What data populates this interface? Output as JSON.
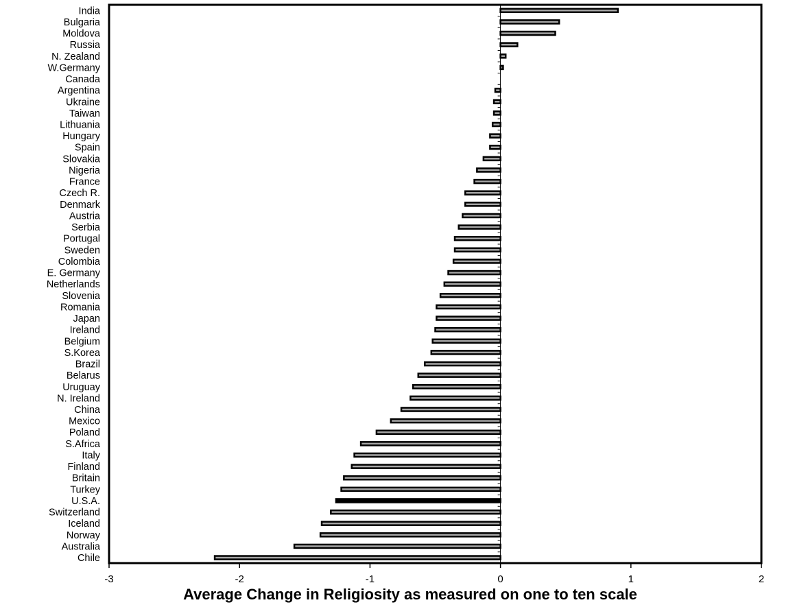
{
  "chart_data": {
    "type": "bar",
    "orientation": "horizontal",
    "xlabel": "Average Change in Religiosity as measured on  one to  ten scale",
    "xlim": [
      -3,
      2
    ],
    "xticks": [
      -3,
      -2,
      -1,
      0,
      1,
      2
    ],
    "grid": false,
    "categories": [
      "India",
      "Bulgaria",
      "Moldova",
      "Russia",
      "N. Zealand",
      "W.Germany",
      "Canada",
      "Argentina",
      "Ukraine",
      "Taiwan",
      "Lithuania",
      "Hungary",
      "Spain",
      "Slovakia",
      "Nigeria",
      "France",
      "Czech R.",
      "Denmark",
      "Austria",
      "Serbia",
      "Portugal",
      "Sweden",
      "Colombia",
      "E. Germany",
      "Netherlands",
      "Slovenia",
      "Romania",
      "Japan",
      "Ireland",
      "Belgium",
      "S.Korea",
      "Brazil",
      "Belarus",
      "Uruguay",
      "N. Ireland",
      "China",
      "Mexico",
      "Poland",
      "S.Africa",
      "Italy",
      "Finland",
      "Britain",
      "Turkey",
      "U.S.A.",
      "Switzerland",
      "Iceland",
      "Norway",
      "Australia",
      "Chile"
    ],
    "values": [
      0.9,
      0.45,
      0.42,
      0.13,
      0.04,
      0.02,
      0.0,
      -0.04,
      -0.05,
      -0.05,
      -0.06,
      -0.08,
      -0.08,
      -0.13,
      -0.18,
      -0.2,
      -0.27,
      -0.27,
      -0.29,
      -0.32,
      -0.35,
      -0.35,
      -0.36,
      -0.4,
      -0.43,
      -0.46,
      -0.49,
      -0.49,
      -0.5,
      -0.52,
      -0.53,
      -0.58,
      -0.63,
      -0.67,
      -0.69,
      -0.76,
      -0.84,
      -0.95,
      -1.07,
      -1.12,
      -1.14,
      -1.2,
      -1.22,
      -1.26,
      -1.3,
      -1.37,
      -1.38,
      -1.58,
      -2.19
    ],
    "highlight_category": "U.S.A.",
    "colors": {
      "bar": "#a6a6a6",
      "bar_edge": "#000000",
      "highlight": "#000000"
    }
  }
}
